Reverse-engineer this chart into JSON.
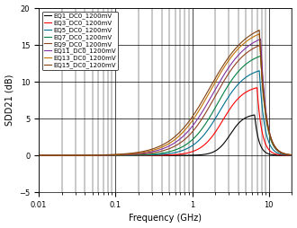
{
  "xlabel": "Frequency (GHz)",
  "ylabel": "SDD21 (dB)",
  "xlim": [
    0.01,
    20
  ],
  "ylim": [
    -5,
    20
  ],
  "yticks": [
    -5,
    0,
    5,
    10,
    15,
    20
  ],
  "curves": [
    {
      "label": "EQ1_DC0_1200mV",
      "color": "#000000"
    },
    {
      "label": "EQ3_DC0_1200mV",
      "color": "#ff0000"
    },
    {
      "label": "EQ5_DC0_1200mV",
      "color": "#007090"
    },
    {
      "label": "EQ7_DC0_1200mV",
      "color": "#008040"
    },
    {
      "label": "EQ9_DC0_1200mV",
      "color": "#904020"
    },
    {
      "label": "EQ11_DC0_1200mV",
      "color": "#8030a0"
    },
    {
      "label": "EQ13_DC0_1200mV",
      "color": "#c07000"
    },
    {
      "label": "EQ15_DC0_1200mV",
      "color": "#804010"
    }
  ],
  "curve_params": [
    {
      "peak_freq": 6.5,
      "peak_val": 5.5,
      "rise_knee": 1.5,
      "rise_steep": 3.5,
      "fall_steep": 18
    },
    {
      "peak_freq": 7.0,
      "peak_val": 9.2,
      "rise_knee": 0.9,
      "rise_steep": 3.2,
      "fall_steep": 16
    },
    {
      "peak_freq": 7.5,
      "peak_val": 11.5,
      "rise_knee": 0.7,
      "rise_steep": 3.0,
      "fall_steep": 15
    },
    {
      "peak_freq": 7.8,
      "peak_val": 13.5,
      "rise_knee": 0.6,
      "rise_steep": 2.9,
      "fall_steep": 14
    },
    {
      "peak_freq": 7.8,
      "peak_val": 15.0,
      "rise_knee": 0.5,
      "rise_steep": 2.8,
      "fall_steep": 14
    },
    {
      "peak_freq": 7.8,
      "peak_val": 15.8,
      "rise_knee": 0.45,
      "rise_steep": 2.7,
      "fall_steep": 14
    },
    {
      "peak_freq": 7.5,
      "peak_val": 16.5,
      "rise_knee": 0.4,
      "rise_steep": 2.7,
      "fall_steep": 13
    },
    {
      "peak_freq": 7.5,
      "peak_val": 17.0,
      "rise_knee": 0.38,
      "rise_steep": 2.6,
      "fall_steep": 13
    }
  ],
  "legend_fontsize": 5.0,
  "axis_fontsize": 7,
  "tick_fontsize": 6,
  "background_color": "#ffffff"
}
